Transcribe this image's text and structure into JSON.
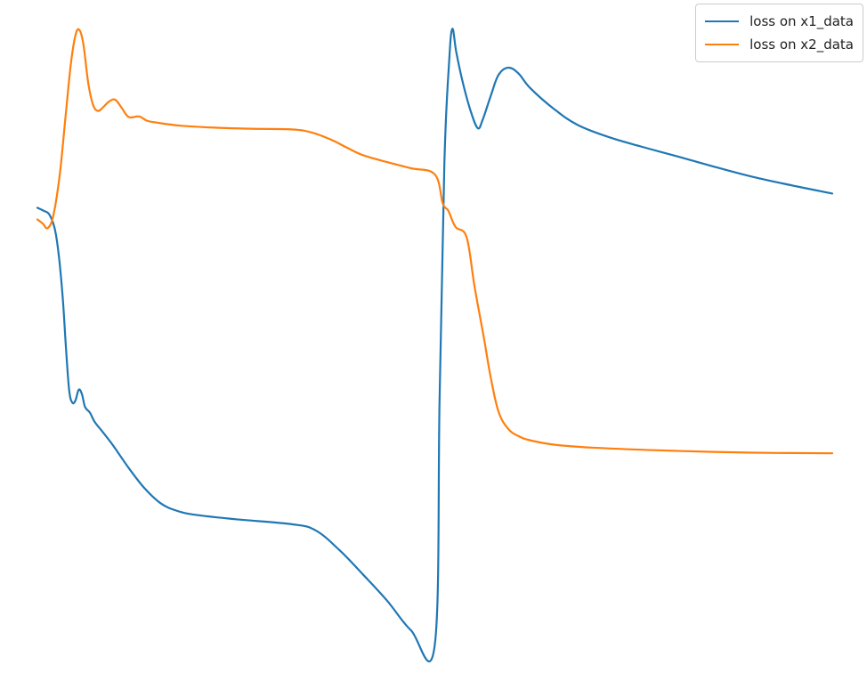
{
  "chart_data": {
    "type": "line",
    "title": "",
    "xlabel": "",
    "ylabel": "",
    "axes_visible": false,
    "grid": false,
    "legend_position": "top-right",
    "xlim": [
      0,
      100
    ],
    "ylim": [
      0,
      100
    ],
    "series": [
      {
        "name": "loss on x1_data",
        "color": "#1f77b4",
        "points": [
          [
            0,
            70.8
          ],
          [
            0.8,
            70.3
          ],
          [
            1.5,
            69.7
          ],
          [
            2.2,
            67.3
          ],
          [
            2.7,
            63.0
          ],
          [
            3.2,
            56.0
          ],
          [
            3.6,
            48.0
          ],
          [
            4.0,
            41.2
          ],
          [
            4.4,
            39.2
          ],
          [
            4.8,
            39.6
          ],
          [
            5.2,
            41.3
          ],
          [
            5.6,
            40.6
          ],
          [
            6.0,
            38.5
          ],
          [
            6.6,
            37.6
          ],
          [
            7.2,
            36.1
          ],
          [
            8.0,
            34.8
          ],
          [
            9.5,
            32.3
          ],
          [
            11.5,
            28.6
          ],
          [
            13.5,
            25.3
          ],
          [
            15.5,
            22.9
          ],
          [
            17.5,
            21.7
          ],
          [
            20.0,
            21.0
          ],
          [
            25.0,
            20.3
          ],
          [
            32.0,
            19.5
          ],
          [
            35.0,
            18.5
          ],
          [
            38.0,
            15.3
          ],
          [
            41.0,
            11.3
          ],
          [
            44.0,
            7.1
          ],
          [
            47.0,
            2.3
          ],
          [
            50.0,
            0
          ],
          [
            50.6,
            40.0
          ],
          [
            51.2,
            78.0
          ],
          [
            51.8,
            94.5
          ],
          [
            52.2,
            99.8
          ],
          [
            52.7,
            96.0
          ],
          [
            53.5,
            91.2
          ],
          [
            54.5,
            86.5
          ],
          [
            55.4,
            83.7
          ],
          [
            56.0,
            85.0
          ],
          [
            57.0,
            88.8
          ],
          [
            58.0,
            92.3
          ],
          [
            59.2,
            93.5
          ],
          [
            60.5,
            92.6
          ],
          [
            62.0,
            90.2
          ],
          [
            65.0,
            86.8
          ],
          [
            68.0,
            84.2
          ],
          [
            72.0,
            82.2
          ],
          [
            76.0,
            80.7
          ],
          [
            80.0,
            79.3
          ],
          [
            85.0,
            77.5
          ],
          [
            90.0,
            75.8
          ],
          [
            95.0,
            74.4
          ],
          [
            100.0,
            73.1
          ]
        ]
      },
      {
        "name": "loss on x2_data",
        "color": "#ff7f0e",
        "points": [
          [
            0,
            68.9
          ],
          [
            0.7,
            68.2
          ],
          [
            1.3,
            67.5
          ],
          [
            2.0,
            69.5
          ],
          [
            2.8,
            76.0
          ],
          [
            3.5,
            85.0
          ],
          [
            4.2,
            94.0
          ],
          [
            4.8,
            98.8
          ],
          [
            5.3,
            99.6
          ],
          [
            5.8,
            97.2
          ],
          [
            6.4,
            91.0
          ],
          [
            7.0,
            87.5
          ],
          [
            7.6,
            86.5
          ],
          [
            8.2,
            87.0
          ],
          [
            9.0,
            88.0
          ],
          [
            9.8,
            88.3
          ],
          [
            10.6,
            87.0
          ],
          [
            11.5,
            85.5
          ],
          [
            12.8,
            85.6
          ],
          [
            13.8,
            84.9
          ],
          [
            15.0,
            84.6
          ],
          [
            18.0,
            84.1
          ],
          [
            22.0,
            83.8
          ],
          [
            27.0,
            83.6
          ],
          [
            32.0,
            83.5
          ],
          [
            34.5,
            83.0
          ],
          [
            37.0,
            81.8
          ],
          [
            39.0,
            80.5
          ],
          [
            41.0,
            79.3
          ],
          [
            44.0,
            78.2
          ],
          [
            47.0,
            77.2
          ],
          [
            50.0,
            76.2
          ],
          [
            51.0,
            71.5
          ],
          [
            51.7,
            70.3
          ],
          [
            52.6,
            67.7
          ],
          [
            54.0,
            66.0
          ],
          [
            55.0,
            58.0
          ],
          [
            56.2,
            49.5
          ],
          [
            57.0,
            43.5
          ],
          [
            58.0,
            37.8
          ],
          [
            59.2,
            35.0
          ],
          [
            60.5,
            33.8
          ],
          [
            62.0,
            33.1
          ],
          [
            65.0,
            32.4
          ],
          [
            70.0,
            31.9
          ],
          [
            80.0,
            31.4
          ],
          [
            90.0,
            31.1
          ],
          [
            100.0,
            31.0
          ]
        ]
      }
    ]
  }
}
